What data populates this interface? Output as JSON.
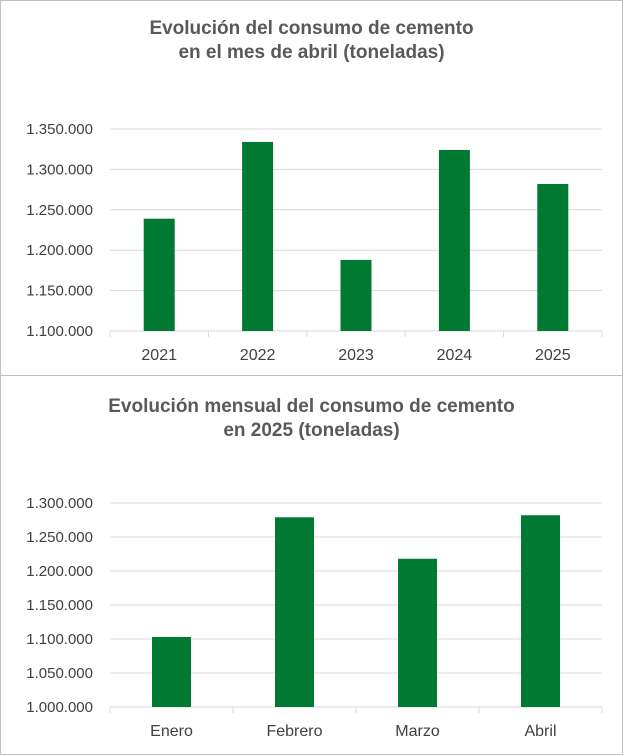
{
  "chart_data": [
    {
      "type": "bar",
      "title": [
        "Evolución del consumo de cemento",
        "en el mes de abril (toneladas)"
      ],
      "categories": [
        "2021",
        "2022",
        "2023",
        "2024",
        "2025"
      ],
      "values": [
        1239000,
        1334000,
        1188000,
        1324000,
        1282000
      ],
      "ylim": [
        1100000,
        1350000
      ],
      "yticks": [
        1100000,
        1150000,
        1200000,
        1250000,
        1300000,
        1350000
      ],
      "ytick_labels": [
        "1.100.000",
        "1.150.000",
        "1.200.000",
        "1.250.000",
        "1.300.000",
        "1.350.000"
      ],
      "bar_color": "#007A33",
      "grid_color": "#D9D9D9",
      "grid": true
    },
    {
      "type": "bar",
      "title": [
        "Evolución mensual del consumo de cemento",
        "en 2025 (toneladas)"
      ],
      "categories": [
        "Enero",
        "Febrero",
        "Marzo",
        "Abril"
      ],
      "values": [
        1103000,
        1279000,
        1218000,
        1282000
      ],
      "ylim": [
        1000000,
        1300000
      ],
      "yticks": [
        1000000,
        1050000,
        1100000,
        1150000,
        1200000,
        1250000,
        1300000
      ],
      "ytick_labels": [
        "1.000.000",
        "1.050.000",
        "1.100.000",
        "1.150.000",
        "1.200.000",
        "1.250.000",
        "1.300.000"
      ],
      "bar_color": "#007A33",
      "grid_color": "#D9D9D9",
      "grid": true
    }
  ]
}
